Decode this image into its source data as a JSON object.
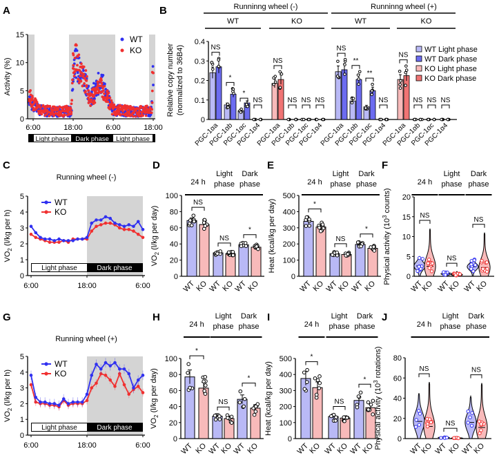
{
  "panel_labels": [
    "A",
    "B",
    "C",
    "D",
    "E",
    "F",
    "G",
    "H",
    "I",
    "J"
  ],
  "colors": {
    "wt": "#3030f0",
    "ko": "#f03030",
    "wt_light": "#b9b9f6",
    "wt_dark": "#6c6cf0",
    "ko_light": "#f8baba",
    "ko_dark": "#f07474",
    "shade": "#d4d4d4"
  },
  "chart_data": [
    {
      "panel": "A",
      "type": "scatter",
      "ylabel": "Activity (%)",
      "ylim": [
        0,
        15
      ],
      "yticks": [
        "0",
        "5",
        "10",
        "15"
      ],
      "xticks": [
        "6:00",
        "18:00",
        "6:00",
        "18:00"
      ],
      "phase_bar": [
        "Light phase",
        "Dark phase",
        "Light phase"
      ],
      "legend": [
        "WT",
        "KO"
      ],
      "x_unit": "hours from 6:00",
      "series": [
        {
          "name": "WT",
          "x": [
            -1.2,
            0,
            2,
            6,
            11.5,
            12,
            13,
            14,
            16,
            17,
            18,
            20,
            21,
            22,
            23.5,
            24,
            26,
            30,
            35.6,
            36
          ],
          "y": [
            3.5,
            2.5,
            1.5,
            1.2,
            1.3,
            9.5,
            10,
            8,
            6,
            3,
            4.5,
            6.5,
            6,
            4.5,
            2,
            1.5,
            1.5,
            1.2,
            1.3,
            10
          ]
        },
        {
          "name": "KO",
          "x": [
            -1.2,
            0,
            2,
            6,
            11.5,
            12,
            13,
            14,
            16,
            17,
            18,
            20,
            21,
            22,
            23.5,
            24,
            26,
            30,
            35.6,
            36
          ],
          "y": [
            4,
            2.8,
            1.6,
            1.3,
            1.4,
            10.5,
            10.5,
            8,
            6.5,
            3.5,
            4,
            5.5,
            5,
            4,
            2.2,
            1.6,
            1.6,
            1.3,
            1.4,
            10.5
          ]
        }
      ]
    },
    {
      "panel": "B",
      "type": "bar",
      "top_headers": [
        "Runninng wheel (-)",
        "Runninng wheel (+)"
      ],
      "genotype_headers": [
        "WT",
        "KO",
        "WT",
        "KO"
      ],
      "ylabel_line1": "Relative copy number",
      "ylabel_line2": "(normalized to 36B4)",
      "ylim": [
        0,
        0.4
      ],
      "yticks": [
        "0",
        "0.1",
        "0.2",
        "0.3",
        "0.4"
      ],
      "genes": [
        "PGC-1αa",
        "PGC-1αb",
        "PGC-1αc",
        "PGC-1α4"
      ],
      "legend": [
        "WT Light phase",
        "WT Dark phase",
        "KO Light phase",
        "KO Dark phase"
      ],
      "groups": [
        {
          "wheel": "-",
          "genotype": "WT",
          "light": [
            0.24,
            0.075,
            0.045,
            0
          ],
          "dark": [
            0.27,
            0.13,
            0.085,
            0
          ],
          "sig": [
            "NS",
            "*",
            "*",
            "NS"
          ]
        },
        {
          "wheel": "-",
          "genotype": "KO",
          "light": [
            0.185,
            0,
            0,
            0
          ],
          "dark": [
            0.205,
            0,
            0,
            0
          ],
          "sig": [
            "NS",
            "NS",
            "NS",
            "NS"
          ]
        },
        {
          "wheel": "+",
          "genotype": "WT",
          "light": [
            0.245,
            0.095,
            0.065,
            0
          ],
          "dark": [
            0.255,
            0.205,
            0.148,
            0
          ],
          "sig": [
            "NS",
            "**",
            "**",
            "NS"
          ]
        },
        {
          "wheel": "+",
          "genotype": "KO",
          "light": [
            0.205,
            0,
            0,
            0
          ],
          "dark": [
            0.225,
            0,
            0,
            0
          ],
          "sig": [
            "NS",
            "NS",
            "NS",
            "NS"
          ]
        }
      ]
    },
    {
      "panel": "C",
      "type": "line",
      "title": "Running wheel (-)",
      "ylabel": {
        "pre": "VO",
        "sub": "2",
        "post": " (l/kg per h)"
      },
      "ylim": [
        0,
        5
      ],
      "yticks": [
        "0",
        "1",
        "2",
        "3",
        "4",
        "5"
      ],
      "xticks": [
        "6:00",
        "18:00",
        "6:00"
      ],
      "phase_bar": [
        "Light phase",
        "Dark phase"
      ],
      "legend": [
        "WT",
        "KO"
      ],
      "x_hours": [
        0,
        1,
        2,
        3,
        4,
        5,
        6,
        7,
        8,
        9,
        10,
        11,
        12,
        13,
        14,
        15,
        16,
        17,
        18,
        19,
        20,
        21,
        22,
        23,
        24
      ],
      "series": [
        {
          "name": "WT",
          "sem": 0.08,
          "values": [
            3.1,
            2.7,
            2.4,
            2.3,
            2.3,
            2.2,
            2.3,
            2.2,
            2.2,
            2.2,
            2.3,
            2.3,
            2.4,
            3.3,
            3.5,
            3.5,
            3.7,
            3.6,
            3.3,
            3.2,
            3.1,
            3.2,
            3.1,
            3.4,
            2.9
          ]
        },
        {
          "name": "KO",
          "sem": 0.1,
          "values": [
            2.6,
            2.4,
            2.3,
            2.2,
            2.1,
            2.1,
            2.1,
            2.2,
            2.1,
            2.3,
            2.3,
            2.3,
            2.3,
            2.8,
            3.1,
            3.2,
            3.3,
            3.3,
            3.2,
            3.0,
            2.9,
            2.9,
            2.8,
            2.6,
            2.4
          ]
        }
      ]
    },
    {
      "panel": "D",
      "type": "bar",
      "headers": [
        [
          "24 h"
        ],
        [
          "Light",
          "phase"
        ],
        [
          "Dark",
          "phase"
        ]
      ],
      "ylabel": {
        "pre": "VO",
        "sub": "2",
        "post": " (l/kg per day)"
      },
      "ylim": [
        0,
        100
      ],
      "yticks": [
        "0",
        "20",
        "40",
        "60",
        "80",
        "100"
      ],
      "xlabels": [
        "WT",
        "KO"
      ],
      "n": [
        8,
        10
      ],
      "groups": [
        {
          "wt": 69,
          "ko": 64,
          "sig": "NS"
        },
        {
          "wt": 29,
          "ko": 28,
          "sig": "NS"
        },
        {
          "wt": 39,
          "ko": 36,
          "sig": "*"
        }
      ]
    },
    {
      "panel": "E",
      "type": "bar",
      "headers": [
        [
          "24 h"
        ],
        [
          "Light",
          "phase"
        ],
        [
          "Dark",
          "phase"
        ]
      ],
      "ylabel": {
        "pre": "Heat (kcal/kg per day)",
        "sub": "",
        "post": ""
      },
      "ylim": [
        0,
        500
      ],
      "yticks": [
        "0",
        "100",
        "200",
        "300",
        "400",
        "500"
      ],
      "xlabels": [
        "WT",
        "KO"
      ],
      "n": [
        8,
        10
      ],
      "groups": [
        {
          "wt": 340,
          "ko": 305,
          "sig": "*"
        },
        {
          "wt": 140,
          "ko": 135,
          "sig": "NS"
        },
        {
          "wt": 197,
          "ko": 173,
          "sig": "*"
        }
      ]
    },
    {
      "panel": "F",
      "type": "violin",
      "headers": [
        [
          "24 h"
        ],
        [
          "Light",
          "phase"
        ],
        [
          "Dark",
          "phase"
        ]
      ],
      "ylabel": {
        "pre": "Physical activity (10",
        "sup": "3",
        "post": " counts)"
      },
      "ylim": [
        0,
        20
      ],
      "yticks": [
        "0",
        "5",
        "10",
        "15",
        "20"
      ],
      "xlabels": [
        "WT",
        "KO"
      ],
      "n": [
        8,
        10
      ],
      "groups": [
        {
          "wt_median": 2.6,
          "ko_median": 2.5,
          "wt_max": 5,
          "ko_max": 12,
          "sig": "NS"
        },
        {
          "wt_median": 0.6,
          "ko_median": 0.4,
          "wt_max": 1,
          "ko_max": 1.2,
          "sig": "NS"
        },
        {
          "wt_median": 2.4,
          "ko_median": 2.2,
          "wt_max": 4,
          "ko_max": 11,
          "sig": "NS"
        }
      ]
    },
    {
      "panel": "G",
      "type": "line",
      "title": "Running wheel (+)",
      "ylabel": {
        "pre": "VO",
        "sub": "2",
        "post": " (l/kg per h)"
      },
      "ylim": [
        0,
        5
      ],
      "yticks": [
        "0",
        "1",
        "2",
        "3",
        "4",
        "5"
      ],
      "xticks": [
        "6:00",
        "18:00",
        "6:00"
      ],
      "phase_bar": [
        "Light phase",
        "Dark phase"
      ],
      "legend": [
        "WT",
        "KO"
      ],
      "x_hours": [
        0,
        1,
        2,
        3,
        4,
        5,
        6,
        7,
        8,
        9,
        10,
        11,
        12,
        13,
        14,
        15,
        16,
        17,
        18,
        19,
        20,
        21,
        22,
        23,
        24
      ],
      "series": [
        {
          "name": "WT",
          "sem": 0.3,
          "values": [
            3.8,
            2.4,
            2.1,
            2.1,
            2.0,
            2.0,
            1.9,
            2.3,
            2.0,
            2.1,
            2.1,
            2.1,
            2.6,
            3.8,
            4.5,
            4.2,
            4.6,
            4.4,
            4.6,
            4.2,
            4.2,
            3.9,
            3.0,
            3.5,
            3.8
          ]
        },
        {
          "name": "KO",
          "sem": 0.25,
          "values": [
            3.2,
            2.1,
            2.0,
            2.0,
            1.9,
            1.9,
            1.8,
            2.2,
            1.9,
            2.0,
            2.0,
            2.0,
            2.2,
            3.0,
            3.3,
            3.9,
            3.8,
            3.5,
            3.1,
            3.9,
            3.2,
            2.6,
            2.9,
            3.1,
            2.7
          ]
        }
      ]
    },
    {
      "panel": "H",
      "type": "bar",
      "headers": [
        [
          "24 h"
        ],
        [
          "Light",
          "phase"
        ],
        [
          "Dark",
          "phase"
        ]
      ],
      "ylabel": {
        "pre": "VO",
        "sub": "2",
        "post": " (l/kg per day)"
      },
      "ylim": [
        0,
        100
      ],
      "yticks": [
        "0",
        "20",
        "40",
        "60",
        "80",
        "100"
      ],
      "xlabels": [
        "WT",
        "KO"
      ],
      "n": [
        5,
        7
      ],
      "groups": [
        {
          "wt": 77,
          "ko": 63,
          "sig": "*"
        },
        {
          "wt": 28,
          "ko": 25,
          "sig": "NS"
        },
        {
          "wt": 49,
          "ko": 38,
          "sig": "*"
        }
      ]
    },
    {
      "panel": "I",
      "type": "bar",
      "headers": [
        [
          "24 h"
        ],
        [
          "Light",
          "phase"
        ],
        [
          "Dark",
          "phase"
        ]
      ],
      "ylabel": {
        "pre": "Heat (kcal/kg per day)",
        "sub": "",
        "post": ""
      },
      "ylim": [
        0,
        500
      ],
      "yticks": [
        "0",
        "100",
        "200",
        "300",
        "400",
        "500"
      ],
      "xlabels": [
        "WT",
        "KO"
      ],
      "n": [
        5,
        7
      ],
      "groups": [
        {
          "wt": 375,
          "ko": 318,
          "sig": "*"
        },
        {
          "wt": 138,
          "ko": 128,
          "sig": "NS"
        },
        {
          "wt": 238,
          "ko": 193,
          "sig": "*"
        }
      ]
    },
    {
      "panel": "J",
      "type": "violin",
      "headers": [
        [
          "24 h"
        ],
        [
          "Light",
          "phase"
        ],
        [
          "Dark",
          "phase"
        ]
      ],
      "ylabel": {
        "pre": "Physical activity (10",
        "sup": "3",
        "post": " rotations)"
      },
      "ylim": [
        0,
        80
      ],
      "yticks": [
        "0",
        "20",
        "40",
        "60",
        "80"
      ],
      "xlabels": [
        "WT",
        "KO"
      ],
      "n": [
        5,
        7
      ],
      "groups": [
        {
          "wt_median": 17,
          "ko_median": 12,
          "wt_max": 45,
          "ko_max": 56,
          "sig": "NS"
        },
        {
          "wt_median": 1,
          "ko_median": 0.5,
          "wt_max": 2,
          "ko_max": 1.2,
          "sig": "NS"
        },
        {
          "wt_median": 16,
          "ko_median": 11,
          "wt_max": 42,
          "ko_max": 55,
          "sig": "NS"
        }
      ]
    }
  ]
}
